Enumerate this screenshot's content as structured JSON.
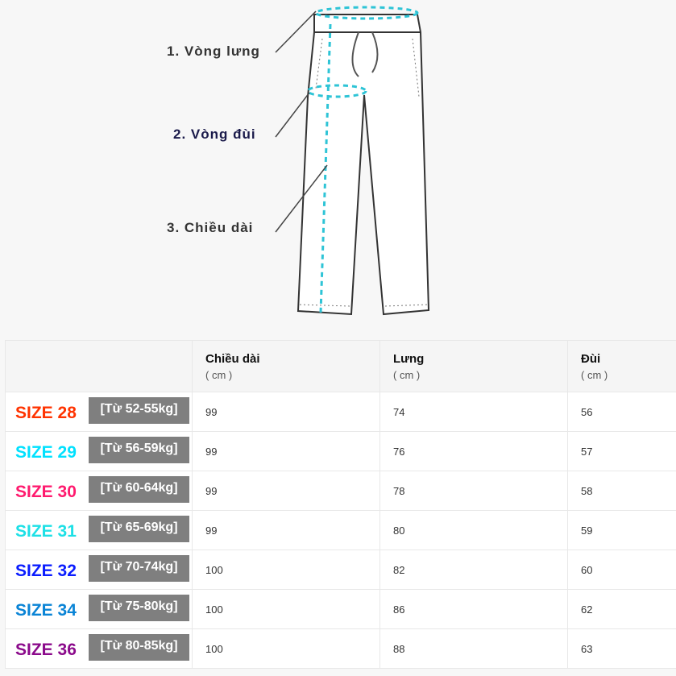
{
  "diagram": {
    "labels": [
      "1. Vòng lưng",
      "2. Vòng đùi",
      "3. Chiều dài"
    ],
    "accent": "#2ec4d6"
  },
  "table": {
    "headers": [
      {
        "label": "Chiều dài",
        "unit": "( cm )"
      },
      {
        "label": "Lưng",
        "unit": "( cm )"
      },
      {
        "label": "Đùi",
        "unit": "( cm )"
      }
    ],
    "rows": [
      {
        "size": "SIZE 28",
        "weight": "[Từ 52-55kg]",
        "color": "#ff3300",
        "length": "99",
        "waist": "74",
        "thigh": "56"
      },
      {
        "size": "SIZE 29",
        "weight": "[Từ 56-59kg]",
        "color": "#00e1ff",
        "length": "99",
        "waist": "76",
        "thigh": "57"
      },
      {
        "size": "SIZE 30",
        "weight": "[Từ 60-64kg]",
        "color": "#ff1a6e",
        "length": "99",
        "waist": "78",
        "thigh": "58"
      },
      {
        "size": "SIZE 31",
        "weight": "[Từ 65-69kg]",
        "color": "#1de0e6",
        "length": "99",
        "waist": "80",
        "thigh": "59"
      },
      {
        "size": "SIZE 32",
        "weight": "[Từ 70-74kg]",
        "color": "#0a1cff",
        "length": "100",
        "waist": "82",
        "thigh": "60"
      },
      {
        "size": "SIZE 34",
        "weight": "[Từ 75-80kg]",
        "color": "#0a84d6",
        "length": "100",
        "waist": "86",
        "thigh": "62"
      },
      {
        "size": "SIZE 36",
        "weight": "[Từ 80-85kg]",
        "color": "#8b0a8b",
        "length": "100",
        "waist": "88",
        "thigh": "63"
      }
    ]
  }
}
